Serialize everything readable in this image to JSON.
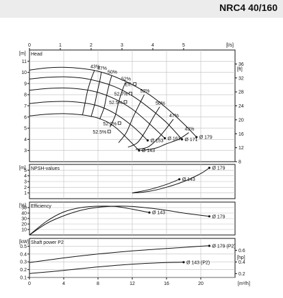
{
  "header": {
    "title": "NRC4 40/160"
  },
  "chart_data": [
    {
      "panel": "head",
      "type": "line",
      "label": "Head",
      "left_unit": "[m]",
      "right_unit": "[ft]",
      "top_unit": "[l/s]",
      "xlim": [
        0,
        24
      ],
      "ylim": [
        2,
        12
      ],
      "right_ylim": [
        8,
        40
      ],
      "left_ticks": [
        3,
        4,
        5,
        6,
        7,
        8,
        9,
        10,
        11
      ],
      "right_ticks": [
        8,
        12,
        16,
        20,
        24,
        28,
        32,
        36
      ],
      "top_ticks": [
        0,
        1,
        2,
        3,
        4,
        5
      ],
      "series": [
        {
          "name": "Ø 179",
          "x": [
            0,
            2,
            4,
            6,
            8,
            10,
            12,
            14,
            16,
            18,
            19.5
          ],
          "y": [
            10.2,
            10.4,
            10.45,
            10.35,
            10.1,
            9.6,
            8.9,
            8.0,
            6.8,
            5.4,
            4.2
          ]
        },
        {
          "name": "Ø 171",
          "x": [
            0,
            2,
            4,
            6,
            8,
            10,
            12,
            14,
            16,
            17.8
          ],
          "y": [
            9.4,
            9.55,
            9.6,
            9.5,
            9.2,
            8.7,
            7.9,
            6.8,
            5.5,
            4.0
          ]
        },
        {
          "name": "Ø 163",
          "x": [
            0,
            2,
            4,
            6,
            8,
            10,
            12,
            14,
            15.8
          ],
          "y": [
            8.4,
            8.55,
            8.6,
            8.5,
            8.2,
            7.6,
            6.7,
            5.4,
            4.1
          ]
        },
        {
          "name": "Ø 153",
          "x": [
            0,
            2,
            4,
            6,
            8,
            10,
            12,
            13.8
          ],
          "y": [
            7.2,
            7.35,
            7.4,
            7.3,
            7.0,
            6.3,
            5.2,
            3.9
          ]
        },
        {
          "name": "Ø 143",
          "x": [
            0,
            2,
            4,
            6,
            8,
            10,
            12.8
          ],
          "y": [
            6.1,
            6.25,
            6.3,
            6.2,
            5.9,
            5.1,
            3.0
          ]
        }
      ],
      "iso_efficiency": [
        {
          "label": "43%",
          "x": [
            7.6,
            7.2,
            6.8,
            6.5,
            6.2
          ],
          "y": [
            10.2,
            9.4,
            8.4,
            7.3,
            6.2
          ]
        },
        {
          "label": "47%",
          "x": [
            8.4,
            8.2,
            7.9,
            7.6,
            7.2
          ],
          "y": [
            10.05,
            9.2,
            8.2,
            7.1,
            6.05
          ]
        },
        {
          "label": "50%",
          "x": [
            9.6,
            9.3,
            9.0,
            8.7,
            8.2
          ],
          "y": [
            9.7,
            8.9,
            7.9,
            6.8,
            5.8
          ]
        },
        {
          "label": "52%",
          "x": [
            11.2,
            10.8,
            10.4,
            10.0,
            9.4
          ],
          "y": [
            9.1,
            8.3,
            7.3,
            6.1,
            5.1
          ]
        },
        {
          "label": "52%",
          "x": [
            13.4,
            12.8,
            12.1,
            11.3,
            10.4
          ],
          "y": [
            8.0,
            7.1,
            6.0,
            4.6,
            3.7
          ]
        },
        {
          "label": "50%",
          "x": [
            15.2,
            14.4,
            13.6,
            12.6,
            11.5
          ],
          "y": [
            6.9,
            5.9,
            4.8,
            3.7,
            3.3
          ]
        },
        {
          "label": "47%",
          "x": [
            16.8,
            15.9,
            14.9,
            13.8,
            12.4
          ],
          "y": [
            5.8,
            4.9,
            4.0,
            3.3,
            3.1
          ]
        },
        {
          "label": "43%",
          "x": [
            18.6,
            17.4,
            16.0,
            14.7,
            13.0
          ],
          "y": [
            4.6,
            4.0,
            3.6,
            3.2,
            3.0
          ]
        }
      ],
      "point_labels": [
        "Eff.",
        "52.7%",
        "52.5%",
        "52.2%",
        "52.5%"
      ]
    },
    {
      "panel": "npsh",
      "type": "line",
      "label": "NPSH-values",
      "left_unit": "[m]",
      "xlim": [
        0,
        24
      ],
      "ylim": [
        0,
        6
      ],
      "left_ticks": [
        1,
        2,
        3,
        4,
        5
      ],
      "series": [
        {
          "name": "Ø 179",
          "x": [
            12,
            14,
            16,
            18,
            20,
            21
          ],
          "y": [
            1.0,
            1.3,
            2.0,
            3.0,
            4.4,
            5.4
          ]
        },
        {
          "name": "Ø 143",
          "x": [
            12,
            14,
            16,
            17.5
          ],
          "y": [
            1.0,
            1.6,
            2.5,
            3.4
          ]
        }
      ]
    },
    {
      "panel": "efficiency",
      "type": "line",
      "label": "Efficiency",
      "left_unit": "[%]",
      "xlim": [
        0,
        24
      ],
      "ylim": [
        0,
        60
      ],
      "left_ticks": [
        10,
        20,
        30,
        40,
        50
      ],
      "series": [
        {
          "name": "Ø 179",
          "x": [
            0,
            2,
            4,
            6,
            8,
            10,
            12,
            14,
            16,
            18,
            20,
            21
          ],
          "y": [
            0,
            21,
            35,
            45,
            50.5,
            52.5,
            52,
            49,
            45,
            40,
            36,
            34
          ]
        },
        {
          "name": "Ø 143",
          "x": [
            0,
            2,
            4,
            6,
            8,
            10,
            12,
            14
          ],
          "y": [
            0,
            25,
            42,
            50,
            52.5,
            52,
            47,
            41
          ]
        }
      ]
    },
    {
      "panel": "power",
      "type": "line",
      "label": "Shaft power P2",
      "left_unit": "[kW]",
      "right_unit": "[hp]",
      "bottom_unit": "[m³/h]",
      "xlim": [
        0,
        24
      ],
      "ylim": [
        0.1,
        0.6
      ],
      "right_ylim": [
        0.134,
        0.804
      ],
      "left_ticks": [
        0.1,
        0.2,
        0.3,
        0.4,
        0.5
      ],
      "right_ticks": [
        0.2,
        0.4,
        0.6
      ],
      "bottom_ticks": [
        0,
        4,
        8,
        12,
        16,
        20
      ],
      "series": [
        {
          "name": "Ø 179 (P2)",
          "x": [
            0,
            4,
            8,
            12,
            16,
            20,
            21
          ],
          "y": [
            0.29,
            0.35,
            0.4,
            0.44,
            0.47,
            0.5,
            0.505
          ]
        },
        {
          "name": "Ø 143 (P2)",
          "x": [
            0,
            4,
            8,
            12,
            16,
            18
          ],
          "y": [
            0.15,
            0.19,
            0.235,
            0.27,
            0.29,
            0.295
          ]
        }
      ]
    }
  ]
}
